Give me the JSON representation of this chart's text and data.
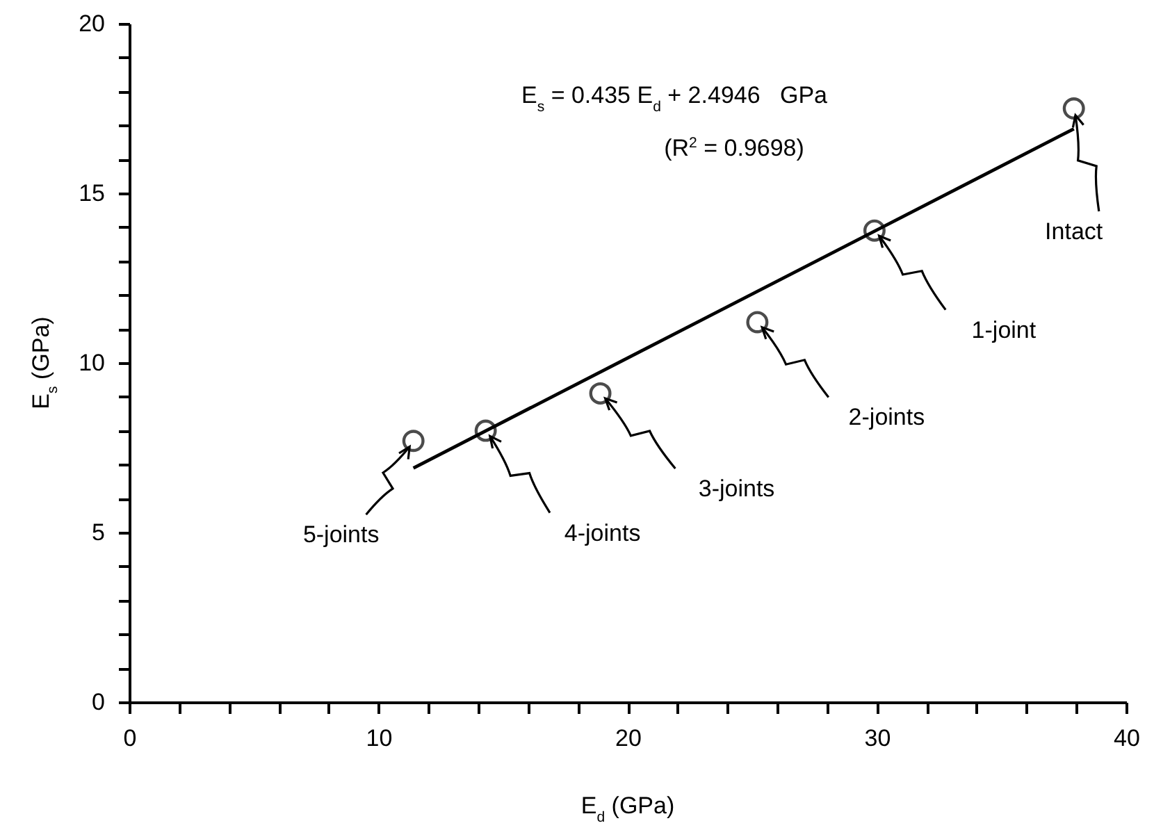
{
  "chart_data": {
    "type": "scatter",
    "xlabel": "E$_{d}$ (GPa)",
    "ylabel": "E$_{s}$ (GPa)",
    "annotations": [
      "E$_{s}$ = 0.435 E$_{d}$ + 2.4946   GPa",
      "(R$^{2}$ = 0.9698)",
      {
        "text": "5-joints",
        "x": 11.4,
        "y": 7.7
      },
      {
        "text": "4-joints",
        "x": 14.3,
        "y": 8.0
      },
      {
        "text": "3-joints",
        "x": 18.9,
        "y": 9.1
      },
      {
        "text": "2-joints",
        "x": 25.2,
        "y": 11.2
      },
      {
        "text": "1-joint",
        "x": 29.9,
        "y": 13.9
      },
      {
        "text": "Intact",
        "x": 37.9,
        "y": 17.5
      }
    ],
    "x": [
      11.4,
      14.3,
      18.9,
      25.2,
      29.9,
      37.9
    ],
    "series": [
      {
        "color": "#000000",
        "values": [
          7.7,
          8.0,
          9.1,
          11.2,
          13.9,
          17.5
        ]
      },
      {
        "type": "line",
        "color": "#000000",
        "marker": "none",
        "x": [
          11.4,
          37.9
        ],
        "values": [
          6.9,
          16.9
        ]
      }
    ],
    "marker": "circle",
    "line_style": "solid",
    "xlim": [
      0,
      40
    ],
    "ylim": [
      0,
      20
    ],
    "xticks": [
      0,
      {
        "value": 2,
        "label": null
      },
      {
        "value": 4,
        "label": null
      },
      {
        "value": 6,
        "label": null
      },
      {
        "value": 8,
        "label": null
      },
      10,
      {
        "value": 12,
        "label": null
      },
      {
        "value": 14,
        "label": null
      },
      {
        "value": 16,
        "label": null
      },
      {
        "value": 18,
        "label": null
      },
      20,
      {
        "value": 22,
        "label": null
      },
      {
        "value": 24,
        "label": null
      },
      {
        "value": 26,
        "label": null
      },
      {
        "value": 28,
        "label": null
      },
      30,
      {
        "value": 32,
        "label": null
      },
      {
        "value": 34,
        "label": null
      },
      {
        "value": 36,
        "label": null
      },
      {
        "value": 38,
        "label": null
      },
      40
    ],
    "yticks": [
      0,
      {
        "value": 1,
        "label": null
      },
      {
        "value": 2,
        "label": null
      },
      {
        "value": 3,
        "label": null
      },
      {
        "value": 4,
        "label": null
      },
      5,
      {
        "value": 6,
        "label": null
      },
      {
        "value": 7,
        "label": null
      },
      {
        "value": 8,
        "label": null
      },
      {
        "value": 9,
        "label": null
      },
      10,
      {
        "value": 11,
        "label": null
      },
      {
        "value": 12,
        "label": null
      },
      {
        "value": 13,
        "label": null
      },
      {
        "value": 14,
        "label": null
      },
      15,
      {
        "value": 16,
        "label": null
      },
      {
        "value": 17,
        "label": null
      },
      {
        "value": 18,
        "label": null
      },
      {
        "value": 19,
        "label": null
      },
      20
    ]
  }
}
